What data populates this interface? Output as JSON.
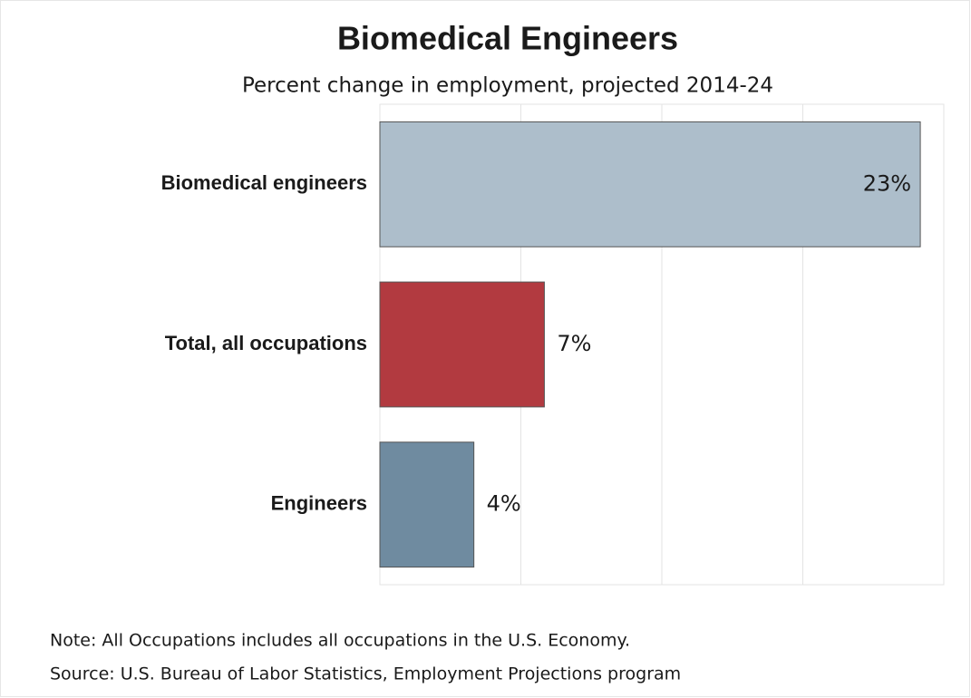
{
  "chart_data": {
    "type": "barh",
    "title": "Biomedical Engineers",
    "subtitle": "Percent change in employment, projected 2014-24",
    "categories": [
      "Biomedical engineers",
      "Total, all occupations",
      "Engineers"
    ],
    "values": [
      23,
      7,
      4
    ],
    "value_labels": [
      "23%",
      "7%",
      "4%"
    ],
    "colors": [
      "#adbecb",
      "#b23a40",
      "#6f8ba0"
    ],
    "xlim": [
      0,
      24
    ],
    "xticks": [
      0,
      6,
      12,
      18,
      24
    ],
    "grid": true,
    "notes": [
      "Note: All Occupations includes all occupations in the U.S. Economy.",
      "Source: U.S. Bureau of Labor Statistics, Employment Projections program"
    ]
  }
}
